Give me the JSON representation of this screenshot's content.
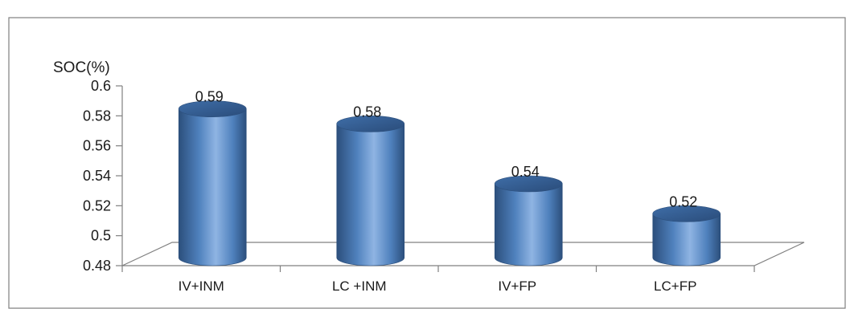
{
  "chart_data": {
    "type": "bar",
    "title": "",
    "xlabel": "",
    "ylabel": "SOC(%)",
    "categories": [
      "IV+INM",
      "LC +INM",
      "IV+FP",
      "LC+FP"
    ],
    "values": [
      0.59,
      0.58,
      0.54,
      0.52
    ],
    "data_labels": [
      "0.59",
      "0.58",
      "0.54",
      "0.52"
    ],
    "ylim": [
      0.48,
      0.6
    ],
    "yticks": [
      "0.48",
      "0.5",
      "0.52",
      "0.54",
      "0.56",
      "0.58",
      "0.6"
    ],
    "ytick_values": [
      0.48,
      0.5,
      0.52,
      0.54,
      0.56,
      0.58,
      0.6
    ],
    "grid": false,
    "legend": "none",
    "style": "3d-cylinder",
    "colors": {
      "bar": "#4f81bd",
      "bar_dark": "#2c4f7c",
      "bar_light": "#8fb4e3",
      "axis": "#808080",
      "frame": "#7f7f7f"
    }
  }
}
